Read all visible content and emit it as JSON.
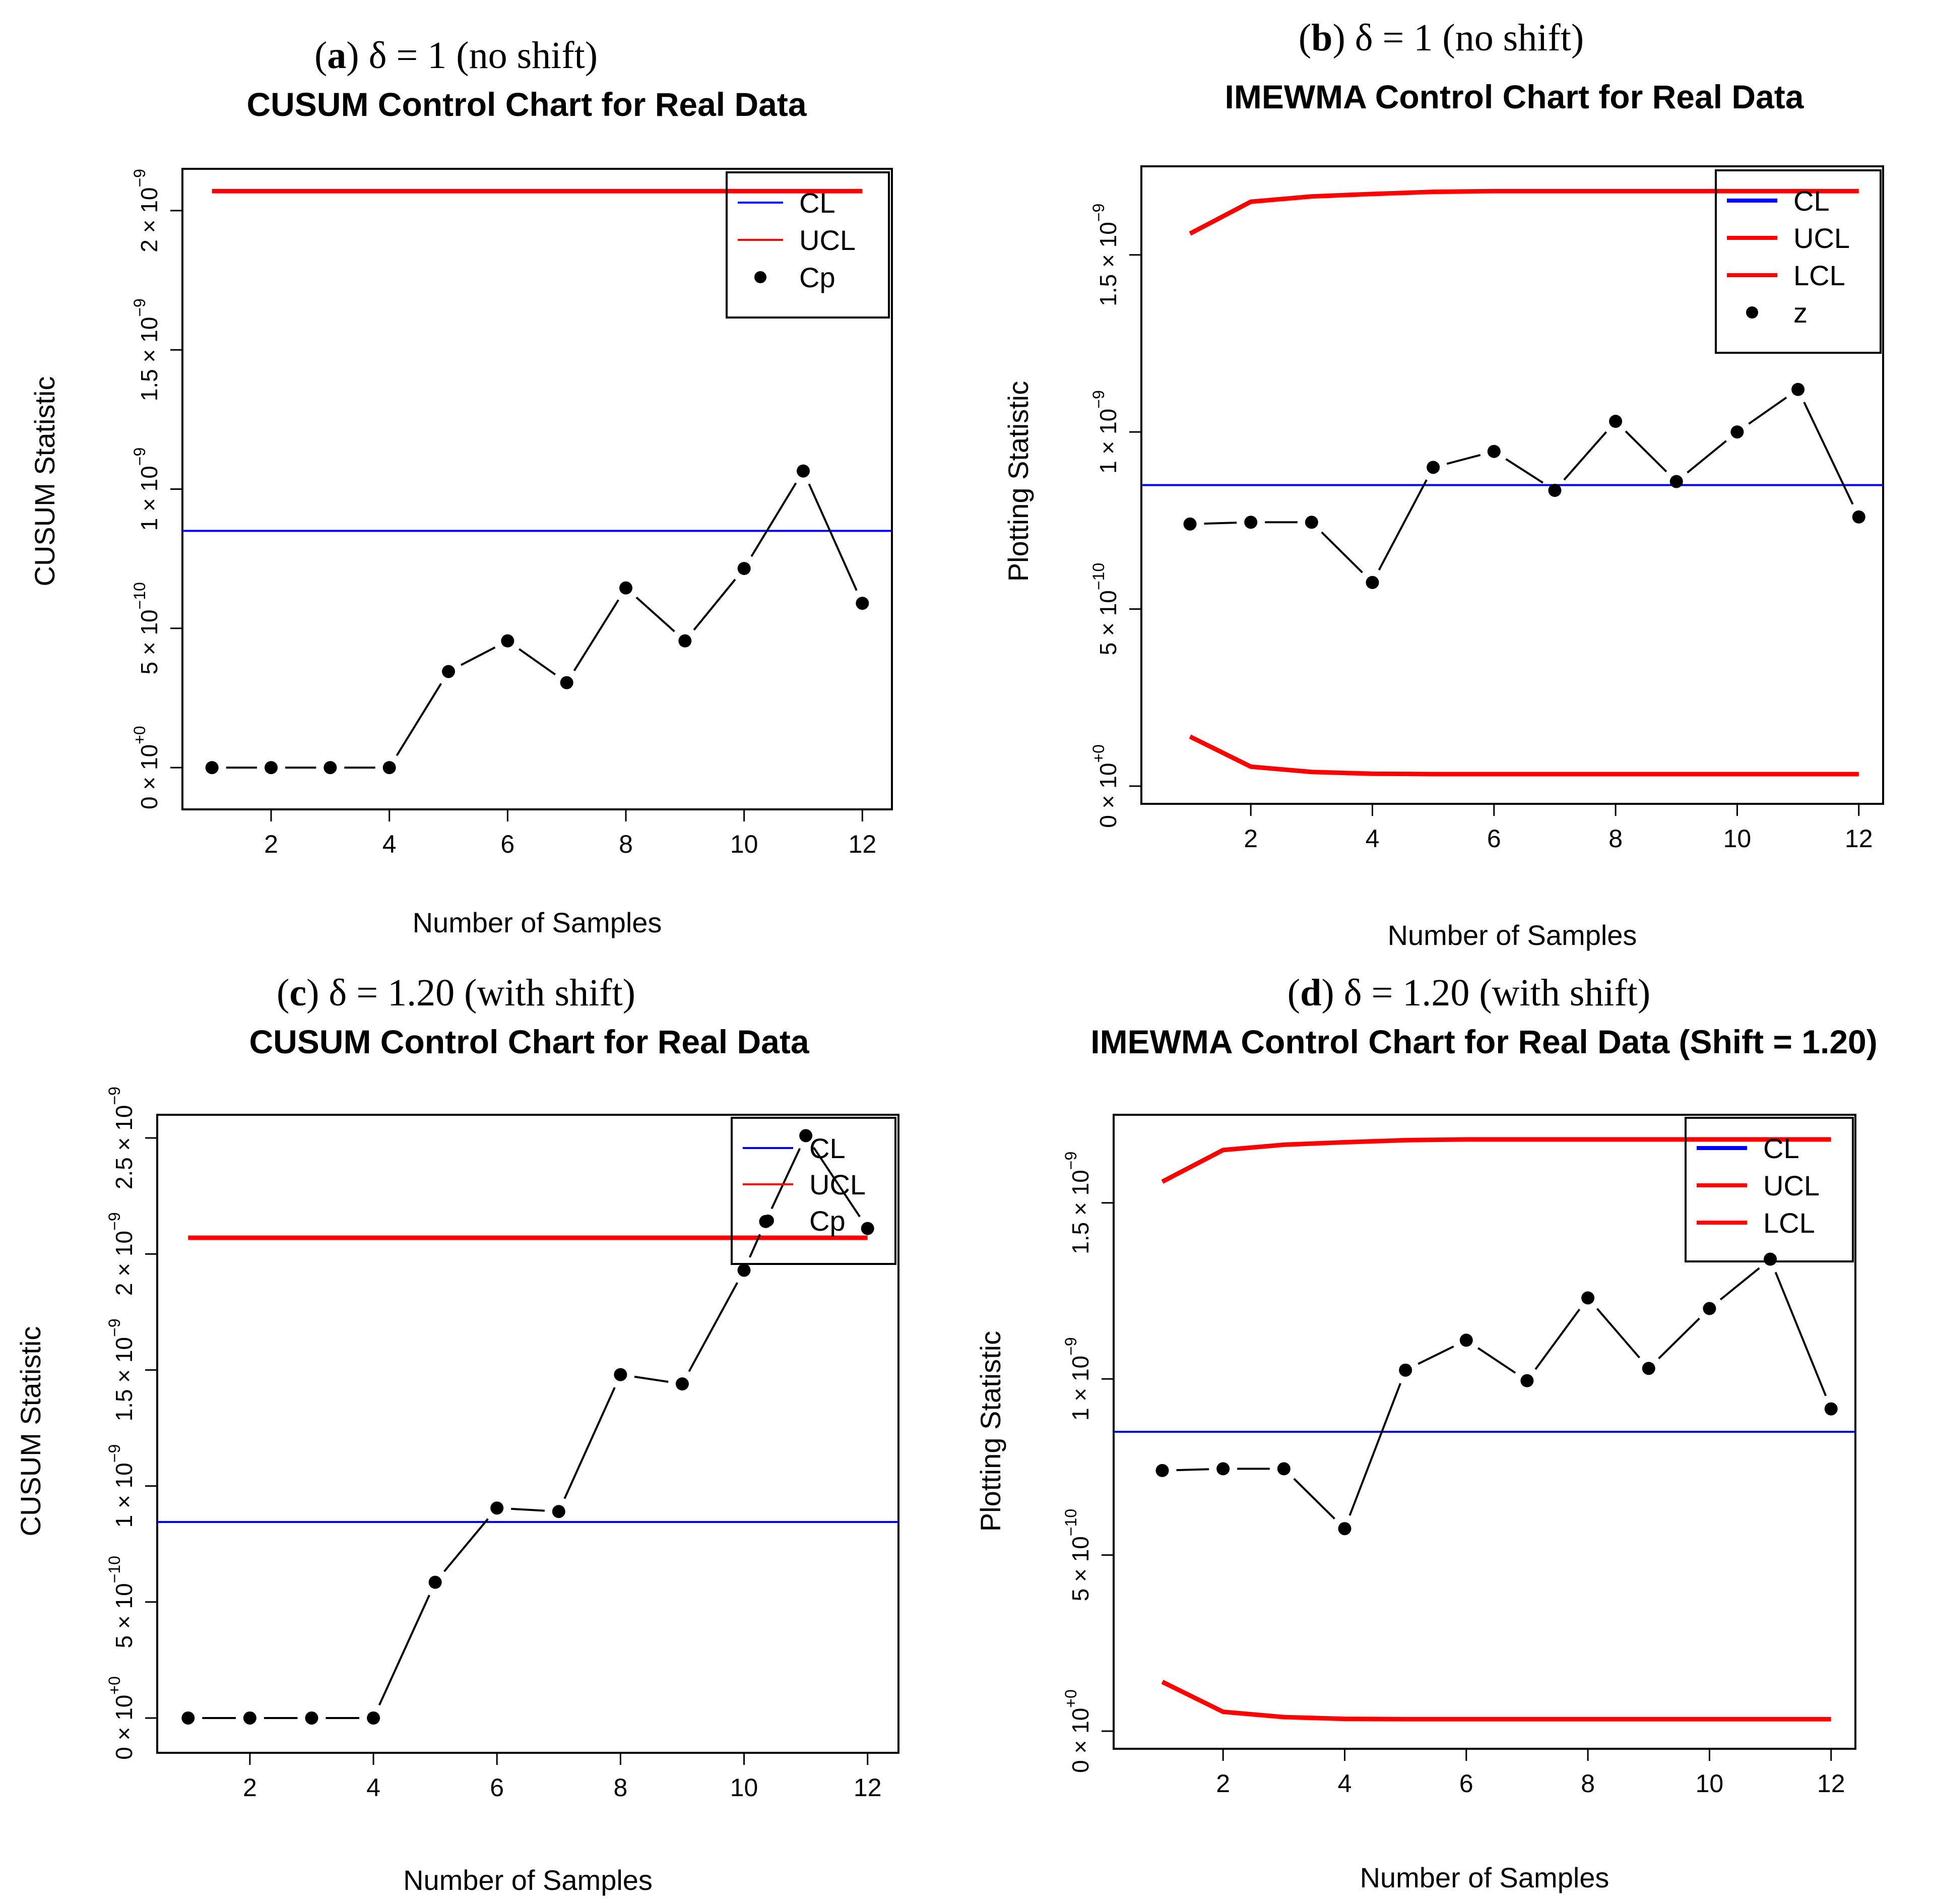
{
  "chart_data": [
    {
      "id": "a",
      "type": "line",
      "caption": {
        "letter": "a",
        "expr": "δ  = 1 (no shift)"
      },
      "title": "CUSUM Control Chart for Real Data",
      "xlabel": "Number of Samples",
      "ylabel": "CUSUM Statistic",
      "xlim": [
        0.5,
        12.5
      ],
      "ylim": [
        -0.15,
        2.15
      ],
      "xticks": [
        2,
        4,
        6,
        8,
        10,
        12
      ],
      "yticks": [
        {
          "v": 0,
          "mant": "0 × 10",
          "exp": "+0"
        },
        {
          "v": 0.5,
          "mant": "5 × 10",
          "exp": "−10"
        },
        {
          "v": 1.0,
          "mant": "1 × 10",
          "exp": "−9"
        },
        {
          "v": 1.5,
          "mant": "1.5 × 10",
          "exp": "−9"
        },
        {
          "v": 2.0,
          "mant": "2 × 10",
          "exp": "−9"
        }
      ],
      "y_unit": "1e-9",
      "series": [
        {
          "name": "Cp",
          "kind": "points-line",
          "color": "#000000",
          "x": [
            1,
            2,
            3,
            4,
            5,
            6,
            7,
            8,
            9,
            10,
            11,
            12
          ],
          "values": [
            0,
            0,
            0,
            0,
            0.345,
            0.455,
            0.305,
            0.645,
            0.455,
            0.715,
            1.065,
            0.59
          ]
        }
      ],
      "hlines": [
        {
          "name": "CL",
          "value": 0.85,
          "color": "#0000ff",
          "width": 4
        },
        {
          "name": "UCL",
          "value": 2.07,
          "color": "#ff0000",
          "width": 9
        }
      ],
      "legend": [
        {
          "label": "CL",
          "type": "line",
          "color": "#0000ff",
          "width": 4
        },
        {
          "label": "UCL",
          "type": "line",
          "color": "#ff0000",
          "width": 4
        },
        {
          "label": "Cp",
          "type": "point",
          "color": "#000000"
        }
      ],
      "legend_position": "top-right"
    },
    {
      "id": "b",
      "type": "line",
      "caption": {
        "letter": "b",
        "expr": "δ  = 1 (no shift)"
      },
      "title": "IMEWMA Control Chart for Real Data",
      "xlabel": "Number of Samples",
      "ylabel": "Plotting Statistic",
      "xlim": [
        0.2,
        12.4
      ],
      "ylim": [
        -0.05,
        1.75
      ],
      "xticks": [
        2,
        4,
        6,
        8,
        10,
        12
      ],
      "yticks": [
        {
          "v": 0,
          "mant": "0 × 10",
          "exp": "+0"
        },
        {
          "v": 0.5,
          "mant": "5 × 10",
          "exp": "−10"
        },
        {
          "v": 1.0,
          "mant": "1 × 10",
          "exp": "−9"
        },
        {
          "v": 1.5,
          "mant": "1.5 × 10",
          "exp": "−9"
        }
      ],
      "y_unit": "1e-9",
      "series": [
        {
          "name": "z",
          "kind": "points-line",
          "color": "#000000",
          "x": [
            1,
            2,
            3,
            4,
            5,
            6,
            7,
            8,
            9,
            10,
            11,
            12
          ],
          "values": [
            0.74,
            0.745,
            0.745,
            0.575,
            0.9,
            0.945,
            0.835,
            1.03,
            0.86,
            1.0,
            1.12,
            0.76
          ]
        },
        {
          "name": "UCL",
          "kind": "line",
          "color": "#ff0000",
          "width": 9,
          "x": [
            1,
            2,
            3,
            4,
            5,
            6,
            7,
            8,
            9,
            10,
            11,
            12
          ],
          "values": [
            1.56,
            1.65,
            1.665,
            1.672,
            1.678,
            1.68,
            1.68,
            1.68,
            1.68,
            1.68,
            1.68,
            1.68
          ]
        },
        {
          "name": "LCL",
          "kind": "line",
          "color": "#ff0000",
          "width": 9,
          "x": [
            1,
            2,
            3,
            4,
            5,
            6,
            7,
            8,
            9,
            10,
            11,
            12
          ],
          "values": [
            0.14,
            0.055,
            0.04,
            0.035,
            0.034,
            0.034,
            0.034,
            0.034,
            0.034,
            0.034,
            0.034,
            0.034
          ]
        }
      ],
      "hlines": [
        {
          "name": "CL",
          "value": 0.85,
          "color": "#0000ff",
          "width": 4
        }
      ],
      "legend": [
        {
          "label": "CL",
          "type": "line",
          "color": "#0000ff",
          "width": 8
        },
        {
          "label": "UCL",
          "type": "line",
          "color": "#ff0000",
          "width": 8
        },
        {
          "label": "LCL",
          "type": "line",
          "color": "#ff0000",
          "width": 8
        },
        {
          "label": "z",
          "type": "point",
          "color": "#000000"
        }
      ],
      "legend_position": "top-right"
    },
    {
      "id": "c",
      "type": "line",
      "caption": {
        "letter": "c",
        "expr": "δ  = 1.20 (with shift)"
      },
      "title": "CUSUM Control Chart for Real Data",
      "xlabel": "Number of Samples",
      "ylabel": "CUSUM Statistic",
      "xlim": [
        0.5,
        12.5
      ],
      "ylim": [
        -0.15,
        2.6
      ],
      "xticks": [
        2,
        4,
        6,
        8,
        10,
        12
      ],
      "yticks": [
        {
          "v": 0,
          "mant": "0 × 10",
          "exp": "+0"
        },
        {
          "v": 0.5,
          "mant": "5 × 10",
          "exp": "−10"
        },
        {
          "v": 1.0,
          "mant": "1 × 10",
          "exp": "−9"
        },
        {
          "v": 1.5,
          "mant": "1.5 × 10",
          "exp": "−9"
        },
        {
          "v": 2.0,
          "mant": "2 × 10",
          "exp": "−9"
        },
        {
          "v": 2.5,
          "mant": "2.5 × 10",
          "exp": "−9"
        }
      ],
      "y_unit": "1e-9",
      "series": [
        {
          "name": "Cp",
          "kind": "points-line",
          "color": "#000000",
          "x": [
            1,
            2,
            3,
            4,
            5,
            6,
            7,
            8,
            9,
            10,
            10.35,
            11,
            12
          ],
          "values": [
            0,
            0,
            0,
            0,
            0.585,
            0.905,
            0.89,
            1.48,
            1.44,
            1.93,
            2.14,
            2.51,
            2.11
          ]
        }
      ],
      "hlines": [
        {
          "name": "CL",
          "value": 0.845,
          "color": "#0000ff",
          "width": 4
        },
        {
          "name": "UCL",
          "value": 2.07,
          "color": "#ff0000",
          "width": 9
        }
      ],
      "legend": [
        {
          "label": "CL",
          "type": "line",
          "color": "#0000ff",
          "width": 4
        },
        {
          "label": "UCL",
          "type": "line",
          "color": "#ff0000",
          "width": 4
        },
        {
          "label": "Cp",
          "type": "point",
          "color": "#000000"
        }
      ],
      "legend_position": "top-right"
    },
    {
      "id": "d",
      "type": "line",
      "caption": {
        "letter": "d",
        "expr": "δ  = 1.20 (with shift)"
      },
      "title": "IMEWMA Control Chart for Real Data (Shift = 1.20)",
      "xlabel": "Number of Samples",
      "ylabel": "Plotting Statistic",
      "xlim": [
        0.2,
        12.4
      ],
      "ylim": [
        -0.05,
        1.75
      ],
      "xticks": [
        2,
        4,
        6,
        8,
        10,
        12
      ],
      "yticks": [
        {
          "v": 0,
          "mant": "0 × 10",
          "exp": "+0"
        },
        {
          "v": 0.5,
          "mant": "5 × 10",
          "exp": "−10"
        },
        {
          "v": 1.0,
          "mant": "1 × 10",
          "exp": "−9"
        },
        {
          "v": 1.5,
          "mant": "1.5 × 10",
          "exp": "−9"
        }
      ],
      "y_unit": "1e-9",
      "series": [
        {
          "name": "z",
          "kind": "points-line",
          "color": "#000000",
          "x": [
            1,
            2,
            3,
            4,
            5,
            6,
            7,
            8,
            9,
            10,
            11,
            12
          ],
          "values": [
            0.74,
            0.745,
            0.745,
            0.575,
            1.025,
            1.11,
            0.995,
            1.23,
            1.03,
            1.2,
            1.34,
            0.915
          ]
        },
        {
          "name": "UCL",
          "kind": "line",
          "color": "#ff0000",
          "width": 9,
          "x": [
            1,
            2,
            3,
            4,
            5,
            6,
            7,
            8,
            9,
            10,
            11,
            12
          ],
          "values": [
            1.56,
            1.65,
            1.665,
            1.672,
            1.678,
            1.68,
            1.68,
            1.68,
            1.68,
            1.68,
            1.68,
            1.68
          ]
        },
        {
          "name": "LCL",
          "kind": "line",
          "color": "#ff0000",
          "width": 9,
          "x": [
            1,
            2,
            3,
            4,
            5,
            6,
            7,
            8,
            9,
            10,
            11,
            12
          ],
          "values": [
            0.14,
            0.055,
            0.04,
            0.035,
            0.034,
            0.034,
            0.034,
            0.034,
            0.034,
            0.034,
            0.034,
            0.034
          ]
        }
      ],
      "hlines": [
        {
          "name": "CL",
          "value": 0.85,
          "color": "#0000ff",
          "width": 4
        }
      ],
      "legend": [
        {
          "label": "CL",
          "type": "line",
          "color": "#0000ff",
          "width": 8
        },
        {
          "label": "UCL",
          "type": "line",
          "color": "#ff0000",
          "width": 8
        },
        {
          "label": "LCL",
          "type": "line",
          "color": "#ff0000",
          "width": 8
        }
      ],
      "legend_position": "top-right"
    }
  ]
}
